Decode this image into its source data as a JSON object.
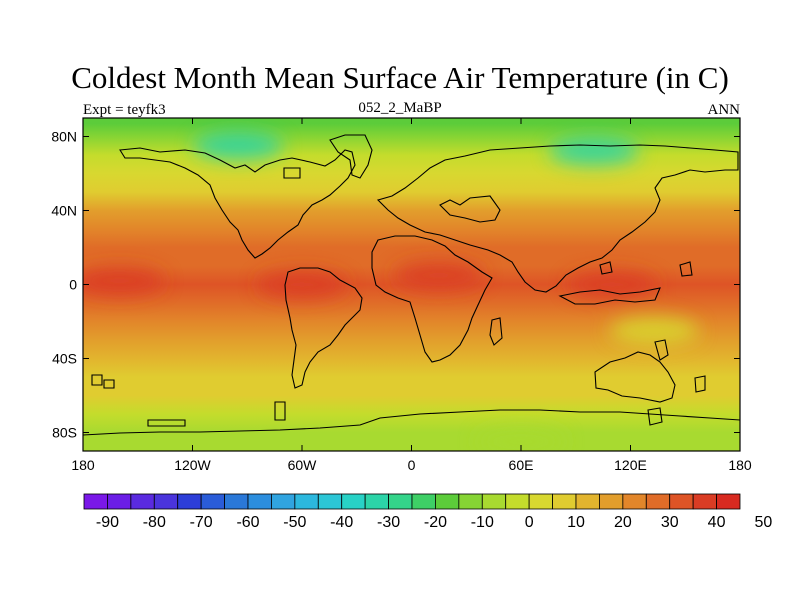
{
  "title": "Coldest Month Mean Surface Air Temperature (in C)",
  "subtitle_left": "Expt = teyfk3",
  "subtitle_center": "052_2_MaBP",
  "subtitle_right": "ANN",
  "x_ticks": [
    "180",
    "120W",
    "60W",
    "0",
    "60E",
    "120E",
    "180"
  ],
  "y_ticks": [
    "80N",
    "40N",
    "0",
    "40S",
    "80S"
  ],
  "colorbar": {
    "labels": [
      "-90",
      "-80",
      "-70",
      "-60",
      "-50",
      "-40",
      "-30",
      "-20",
      "-10",
      "0",
      "10",
      "20",
      "30",
      "40",
      "50"
    ],
    "colors": [
      "#7a18e8",
      "#6b1ee6",
      "#5a2ae0",
      "#4a34dc",
      "#2d3ed8",
      "#2a5cd8",
      "#2a78d8",
      "#2c8ede",
      "#30a4e0",
      "#2cb8de",
      "#2cc6d6",
      "#28d2c6",
      "#2cd4a8",
      "#34d48a",
      "#3ecf66",
      "#5ccc3a",
      "#86d434",
      "#a8da30",
      "#c4dc2c",
      "#d8d830",
      "#e0cc30",
      "#e2b42e",
      "#e29e2c",
      "#e2862a",
      "#e06c28",
      "#de5426",
      "#da3c24",
      "#d82a20"
    ]
  },
  "chart_data": {
    "type": "heatmap",
    "title": "Coldest Month Mean Surface Air Temperature (in C)",
    "projection": "cylindrical equidistant",
    "xlim": [
      -180,
      180
    ],
    "ylim": [
      -90,
      90
    ],
    "units": "C",
    "contour_levels": [
      -90,
      -85,
      -80,
      -75,
      -70,
      -65,
      -60,
      -55,
      -50,
      -45,
      -40,
      -35,
      -30,
      -25,
      -20,
      -15,
      -10,
      -5,
      0,
      5,
      10,
      15,
      20,
      25,
      30,
      35,
      40,
      45,
      50
    ],
    "zonal_profile": [
      {
        "lat": 87,
        "value": -12
      },
      {
        "lat": 80,
        "value": -8
      },
      {
        "lat": 70,
        "value": 0
      },
      {
        "lat": 60,
        "value": 8
      },
      {
        "lat": 50,
        "value": 14
      },
      {
        "lat": 40,
        "value": 20
      },
      {
        "lat": 30,
        "value": 25
      },
      {
        "lat": 20,
        "value": 30
      },
      {
        "lat": 10,
        "value": 34
      },
      {
        "lat": 0,
        "value": 38
      },
      {
        "lat": -10,
        "value": 33
      },
      {
        "lat": -20,
        "value": 28
      },
      {
        "lat": -30,
        "value": 22
      },
      {
        "lat": -40,
        "value": 17
      },
      {
        "lat": -50,
        "value": 14
      },
      {
        "lat": -60,
        "value": 10
      },
      {
        "lat": -70,
        "value": 2
      },
      {
        "lat": -80,
        "value": -4
      },
      {
        "lat": -87,
        "value": -5
      }
    ],
    "features": [
      {
        "name": "Arctic cold core (North America)",
        "lon": -95,
        "lat": 75,
        "value": -28
      },
      {
        "name": "Arctic cold core (Siberia)",
        "lon": 100,
        "lat": 72,
        "value": -27
      },
      {
        "name": "Tropical Africa warm core",
        "lon": 15,
        "lat": 5,
        "value": 42
      },
      {
        "name": "South America warm core",
        "lon": -60,
        "lat": 0,
        "value": 40
      },
      {
        "name": "Indo-Pacific warm pool",
        "lon": 110,
        "lat": 0,
        "value": 40
      },
      {
        "name": "Eastern Pacific warm band",
        "lon": -160,
        "lat": 2,
        "value": 40
      },
      {
        "name": "Australia interior",
        "lon": 133,
        "lat": -25,
        "value": 7
      },
      {
        "name": "Antarctica margin",
        "lon": 60,
        "lat": -85,
        "value": -2
      }
    ]
  }
}
